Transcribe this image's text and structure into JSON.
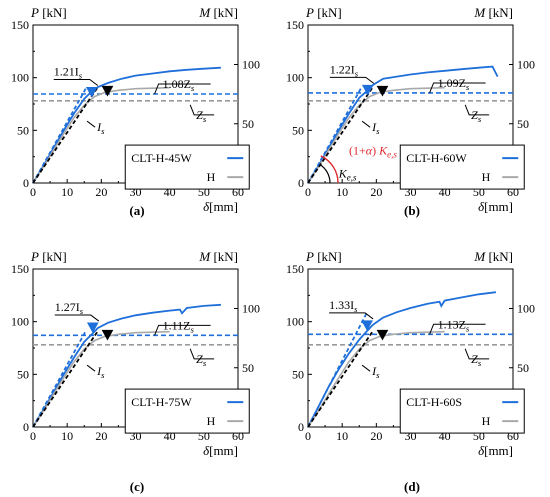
{
  "colors": {
    "blue": "#1f6fdb",
    "gray": "#a9a9a9",
    "black": "#000000",
    "red": "#e0262b",
    "dash_blue": "#1f6fdb",
    "dash_gray": "#9a9a9a"
  },
  "chart_data": [
    {
      "type": "line",
      "panel_label": "(a)",
      "left_axis_label": "P [kN]",
      "right_axis_label": "M [kN]",
      "xlabel": "δ[mm]",
      "xlim": [
        0,
        60
      ],
      "ylim": [
        0,
        150
      ],
      "x_ticks": [
        0,
        10,
        20,
        30,
        40,
        50,
        60
      ],
      "y_ticks": [
        0,
        50,
        100,
        150
      ],
      "right_ticks": [
        50,
        100
      ],
      "series": [
        {
          "name": "CLT-H-45W",
          "color": "#1f6fdb",
          "x": [
            0,
            3,
            6,
            9,
            12,
            15,
            17.2,
            19,
            22,
            26,
            30,
            35,
            40,
            45,
            50,
            55
          ],
          "y": [
            0,
            16,
            33,
            50,
            66,
            80,
            87,
            91,
            95,
            99,
            102,
            104,
            106,
            107.5,
            108.5,
            109.5
          ]
        },
        {
          "name": "H",
          "color": "#a9a9a9",
          "x": [
            0,
            3,
            6,
            9,
            12,
            15,
            18,
            21,
            25,
            30,
            35,
            40
          ],
          "y": [
            0,
            15,
            31,
            47,
            62,
            74,
            82,
            86,
            88,
            89.5,
            90,
            90.5
          ]
        }
      ],
      "stiffness_lines": [
        {
          "label": "1.21",
          "sub": "s",
          "slope": 5.8,
          "to_y": 90,
          "color": "#1f6fdb"
        },
        {
          "label": "I",
          "sub": "s",
          "slope": 4.8,
          "to_y": 90,
          "color": "#000000"
        }
      ],
      "hlines": [
        {
          "label": "1.08Z",
          "sub": "s",
          "y": 84.5,
          "color": "#1f6fdb"
        },
        {
          "label": "Z",
          "sub": "s",
          "y": 78,
          "color": "#9a9a9a"
        }
      ],
      "markers": [
        {
          "x": 17.2,
          "y": 85,
          "color": "#1f6fdb"
        },
        {
          "x": 21.8,
          "y": 86,
          "color": "#000000"
        }
      ],
      "annotations": {
        "top_label": "1.21I",
        "top_sub": "s",
        "right_label": "1.08Z",
        "right_sub": "s",
        "zs_label": "Z",
        "zs_sub": "s",
        "is_label": "I",
        "is_sub": "s"
      }
    },
    {
      "type": "line",
      "panel_label": "(b)",
      "left_axis_label": "P [kN]",
      "right_axis_label": "M [kN]",
      "xlabel": "δ[mm]",
      "xlim": [
        0,
        60
      ],
      "ylim": [
        0,
        150
      ],
      "x_ticks": [
        0,
        10,
        20,
        30,
        40,
        50,
        60
      ],
      "y_ticks": [
        0,
        50,
        100,
        150
      ],
      "right_ticks": [
        50,
        100
      ],
      "series": [
        {
          "name": "CLT-H-60W",
          "color": "#1f6fdb",
          "x": [
            0,
            3,
            6,
            9,
            12,
            15,
            17.5,
            19,
            22,
            26,
            30,
            35,
            40,
            45,
            50,
            54,
            55.5
          ],
          "y": [
            0,
            16,
            33,
            50,
            66,
            81,
            88,
            93,
            99,
            101,
            103,
            105,
            106.5,
            108,
            109.5,
            110.5,
            101
          ]
        },
        {
          "name": "H",
          "color": "#a9a9a9",
          "x": [
            0,
            3,
            6,
            9,
            12,
            15,
            18,
            21,
            25,
            30,
            35,
            40
          ],
          "y": [
            0,
            15,
            31,
            47,
            62,
            74,
            82,
            86,
            88,
            89.5,
            90,
            90.5
          ]
        }
      ],
      "stiffness_lines": [
        {
          "label": "1.22",
          "sub": "s",
          "slope": 5.8,
          "to_y": 90,
          "color": "#1f6fdb"
        },
        {
          "label": "I",
          "sub": "s",
          "slope": 4.8,
          "to_y": 90,
          "color": "#000000"
        }
      ],
      "hlines": [
        {
          "label": "1.09Z",
          "sub": "s",
          "y": 85.5,
          "color": "#1f6fdb"
        },
        {
          "label": "Z",
          "sub": "s",
          "y": 78,
          "color": "#9a9a9a"
        }
      ],
      "markers": [
        {
          "x": 17.5,
          "y": 87,
          "color": "#1f6fdb"
        },
        {
          "x": 21.8,
          "y": 86,
          "color": "#000000"
        }
      ],
      "annotations": {
        "top_label": "1.22I",
        "top_sub": "s",
        "right_label": "1.09Z",
        "right_sub": "s",
        "zs_label": "Z",
        "zs_sub": "s",
        "is_label": "I",
        "is_sub": "s",
        "red_label": "(1+α) K",
        "red_sub": "e,s",
        "ke_label": "K",
        "ke_sub": "e,s"
      }
    },
    {
      "type": "line",
      "panel_label": "(c)",
      "left_axis_label": "P [kN]",
      "right_axis_label": "M [kN]",
      "xlabel": "δ[mm]",
      "xlim": [
        0,
        60
      ],
      "ylim": [
        0,
        150
      ],
      "x_ticks": [
        0,
        10,
        20,
        30,
        40,
        50,
        60
      ],
      "y_ticks": [
        0,
        50,
        100,
        150
      ],
      "right_ticks": [
        50,
        100
      ],
      "series": [
        {
          "name": "CLT-H-75W",
          "color": "#1f6fdb",
          "x": [
            0,
            3,
            6,
            9,
            12,
            15,
            17.5,
            19,
            22,
            26,
            30,
            35,
            40,
            43,
            43.6,
            45,
            50,
            55
          ],
          "y": [
            0,
            16,
            33,
            50,
            66,
            81,
            89,
            94,
            99,
            103,
            106,
            108.5,
            110.5,
            111.5,
            108,
            113,
            115,
            116
          ]
        },
        {
          "name": "H",
          "color": "#a9a9a9",
          "x": [
            0,
            3,
            6,
            9,
            12,
            15,
            18,
            21,
            25,
            30,
            35,
            40
          ],
          "y": [
            0,
            15,
            31,
            47,
            62,
            74,
            82,
            86,
            88,
            89.5,
            90,
            90.5
          ]
        }
      ],
      "stiffness_lines": [
        {
          "label": "1.27",
          "sub": "s",
          "slope": 5.9,
          "to_y": 90,
          "color": "#1f6fdb"
        },
        {
          "label": "I",
          "sub": "s",
          "slope": 4.8,
          "to_y": 90,
          "color": "#000000"
        }
      ],
      "hlines": [
        {
          "label": "1.11Z",
          "sub": "s",
          "y": 87,
          "color": "#1f6fdb"
        },
        {
          "label": "Z",
          "sub": "s",
          "y": 78,
          "color": "#9a9a9a"
        }
      ],
      "markers": [
        {
          "x": 17.5,
          "y": 93,
          "color": "#1f6fdb"
        },
        {
          "x": 21.8,
          "y": 86,
          "color": "#000000"
        }
      ],
      "annotations": {
        "top_label": "1.27I",
        "top_sub": "s",
        "right_label": "1.11Z",
        "right_sub": "s",
        "zs_label": "Z",
        "zs_sub": "s",
        "is_label": "I",
        "is_sub": "s"
      }
    },
    {
      "type": "line",
      "panel_label": "(d)",
      "left_axis_label": "P [kN]",
      "right_axis_label": "M [kN]",
      "xlabel": "δ[mm]",
      "xlim": [
        0,
        60
      ],
      "ylim": [
        0,
        150
      ],
      "x_ticks": [
        0,
        10,
        20,
        30,
        40,
        50,
        60
      ],
      "y_ticks": [
        0,
        50,
        100,
        150
      ],
      "right_ticks": [
        50,
        100
      ],
      "series": [
        {
          "name": "CLT-H-60S",
          "color": "#1f6fdb",
          "x": [
            0,
            3,
            6,
            9,
            12,
            15,
            17.5,
            19,
            22,
            26,
            30,
            35,
            38.5,
            39,
            40,
            45,
            50,
            55
          ],
          "y": [
            0,
            19,
            38,
            55,
            70,
            83,
            92,
            97,
            104,
            109,
            113,
            117,
            119,
            115,
            120,
            123,
            126,
            128
          ]
        },
        {
          "name": "H",
          "color": "#a9a9a9",
          "x": [
            0,
            3,
            6,
            9,
            12,
            15,
            18,
            21,
            25,
            30,
            35,
            40
          ],
          "y": [
            0,
            15,
            31,
            47,
            62,
            74,
            82,
            86,
            88,
            89.5,
            90,
            90.5
          ]
        }
      ],
      "stiffness_lines": [
        {
          "label": "1.33",
          "sub": "s",
          "slope": 6.3,
          "to_y": 108,
          "color": "#1f6fdb"
        },
        {
          "label": "I",
          "sub": "s",
          "slope": 4.8,
          "to_y": 90,
          "color": "#000000"
        }
      ],
      "hlines": [
        {
          "label": "1.13Z",
          "sub": "s",
          "y": 88,
          "color": "#1f6fdb"
        },
        {
          "label": "Z",
          "sub": "s",
          "y": 78,
          "color": "#9a9a9a"
        }
      ],
      "markers": [
        {
          "x": 17.3,
          "y": 95,
          "color": "#1f6fdb"
        },
        {
          "x": 21.8,
          "y": 86,
          "color": "#000000"
        }
      ],
      "annotations": {
        "top_label": "1.33I",
        "top_sub": "s",
        "right_label": "1.13Z",
        "right_sub": "s",
        "zs_label": "Z",
        "zs_sub": "s",
        "is_label": "I",
        "is_sub": "s"
      }
    }
  ]
}
